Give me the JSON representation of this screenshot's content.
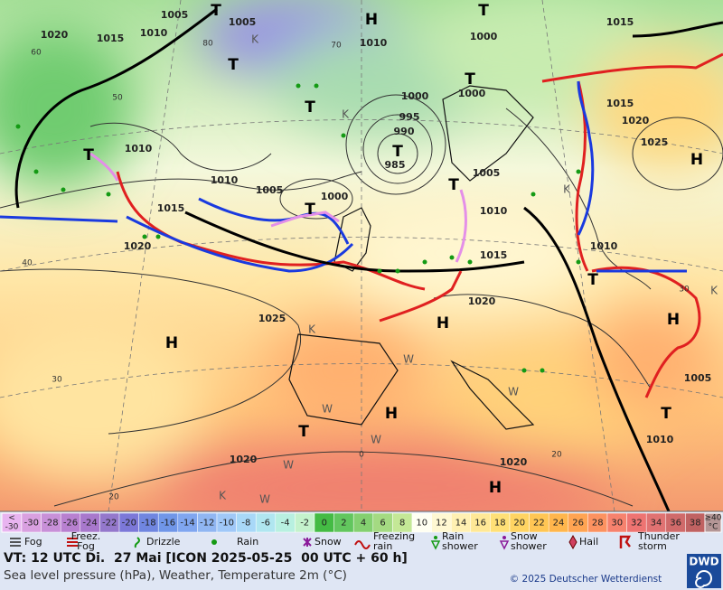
{
  "map": {
    "isobar_labels": [
      1005,
      1005,
      1020,
      1015,
      1010,
      1010,
      1000,
      1015,
      1000,
      1000,
      995,
      990,
      985,
      1010,
      1010,
      1005,
      1000,
      1005,
      1015,
      1010,
      1020,
      1015,
      1010,
      1015,
      1020,
      1025,
      1025,
      1020,
      1020,
      1020,
      1005,
      1010
    ],
    "isotherm_labels": [
      60,
      50,
      40,
      30,
      20,
      80,
      70,
      0,
      20,
      30
    ],
    "pressure_centers": [
      "H",
      "T",
      "T",
      "T",
      "T",
      "T",
      "T",
      "T",
      "T",
      "H",
      "H",
      "H",
      "H",
      "T",
      "H",
      "T",
      "T",
      "H",
      "T"
    ],
    "airmass_markers": [
      "K",
      "K",
      "K",
      "K",
      "K",
      "K",
      "W",
      "W",
      "W",
      "W",
      "W",
      "W"
    ]
  },
  "temperature_scale": {
    "low": {
      "symbol": "<",
      "value": -30
    },
    "high": {
      "symbol": "≥40",
      "unit": "°C"
    },
    "values": [
      -30,
      -28,
      -26,
      -24,
      -22,
      -20,
      -18,
      -16,
      -14,
      -12,
      -10,
      -8,
      -6,
      -4,
      -2,
      0,
      2,
      4,
      6,
      8,
      10,
      12,
      14,
      16,
      18,
      20,
      22,
      24,
      26,
      28,
      30,
      32,
      34,
      36,
      38
    ],
    "colors": [
      "#d9a0e0",
      "#c890d8",
      "#b880d0",
      "#a878cc",
      "#9478cc",
      "#7c78d8",
      "#7086e0",
      "#7096e8",
      "#80a6f0",
      "#90b6f2",
      "#a0c8f8",
      "#a8d8f8",
      "#b0e6f0",
      "#b8f0e0",
      "#c4f2cc",
      "#44bb44",
      "#62c65e",
      "#84d070",
      "#a4da82",
      "#c4e896",
      "#fffff2",
      "#fff8d2",
      "#fff0b2",
      "#ffe896",
      "#ffe076",
      "#ffd462",
      "#ffc654",
      "#ffb64c",
      "#ffa452",
      "#fc9260",
      "#f6826e",
      "#ee7472",
      "#e07272",
      "#d06a6a",
      "#c06262"
    ]
  },
  "weather_legend": [
    {
      "lines": [
        "Fog"
      ]
    },
    {
      "lines": [
        "Freez.",
        "Fog"
      ]
    },
    {
      "lines": [
        "Drizzle"
      ]
    },
    {
      "lines": [
        "Rain"
      ]
    },
    {
      "lines": [
        "Snow"
      ]
    },
    {
      "lines": [
        "Freezing",
        "rain"
      ]
    },
    {
      "lines": [
        "Rain",
        "shower"
      ]
    },
    {
      "lines": [
        "Snow",
        "shower"
      ]
    },
    {
      "lines": [
        "Hail"
      ]
    },
    {
      "lines": [
        "Thunder",
        "storm"
      ]
    }
  ],
  "footer": {
    "valid_time": "VT: 12 UTC Di.  27 Mai [ICON 2025-05-25  00 UTC + 60 h]",
    "description": "Sea level pressure (hPa), Weather, Temperature 2m (°C)",
    "copyright": "© 2025 Deutscher Wetterdienst",
    "logo": "DWD"
  }
}
